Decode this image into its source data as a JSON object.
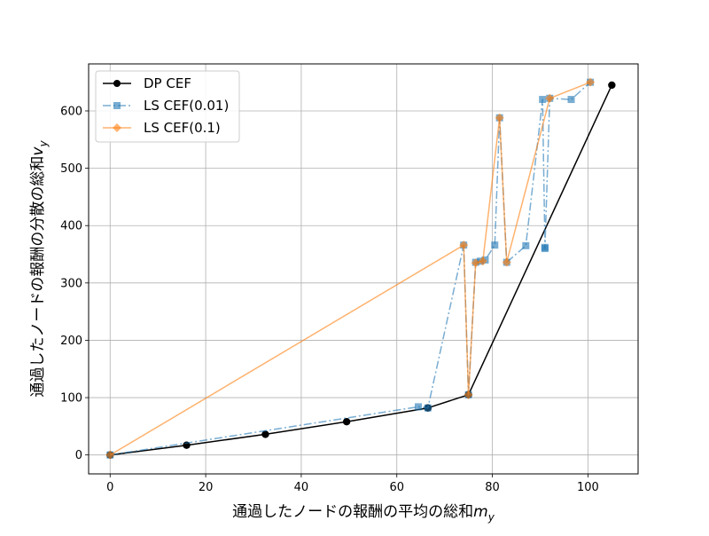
{
  "chart_data": {
    "type": "line",
    "title": "",
    "xlabel": "通過したノードの報酬の平均の総和",
    "xlabel_math": "m",
    "xlabel_sub": "y",
    "ylabel": "通過したノードの報酬の分散の総和",
    "ylabel_math": "v",
    "ylabel_sub": "y",
    "xlim": [
      -4.5,
      110.5
    ],
    "ylim": [
      -33,
      682
    ],
    "xticks": [
      0,
      20,
      40,
      60,
      80,
      100
    ],
    "yticks": [
      0,
      100,
      200,
      300,
      400,
      500,
      600
    ],
    "grid": true,
    "legend_position": "top-left",
    "series": [
      {
        "name": "DP CEF",
        "color": "#000000",
        "marker": "circle",
        "linestyle": "solid",
        "x": [
          0,
          16,
          32.5,
          49.5,
          66.5,
          75,
          105
        ],
        "y": [
          0,
          17,
          36,
          58,
          82,
          105,
          645
        ]
      },
      {
        "name": "LS CEF(0.01)",
        "color": "#1f77b4",
        "marker": "square",
        "linestyle": "dashdot",
        "x": [
          0,
          64.5,
          66.5,
          74,
          75,
          76.5,
          77.5,
          78.5,
          80.5,
          81.5,
          83,
          87,
          90.5,
          91,
          91,
          92,
          96.5,
          100.5
        ],
        "y": [
          0,
          84,
          82,
          366,
          105,
          336,
          338,
          340,
          366,
          588,
          336,
          365,
          620,
          362,
          360,
          622,
          620,
          650
        ]
      },
      {
        "name": "LS CEF(0.1)",
        "color": "#ff7f0e",
        "marker": "diamond",
        "linestyle": "solid",
        "x": [
          0,
          74,
          75,
          76.5,
          78,
          81.5,
          83,
          92,
          100.5
        ],
        "y": [
          0,
          366,
          105,
          335,
          338,
          588,
          336,
          622,
          650
        ]
      }
    ]
  }
}
